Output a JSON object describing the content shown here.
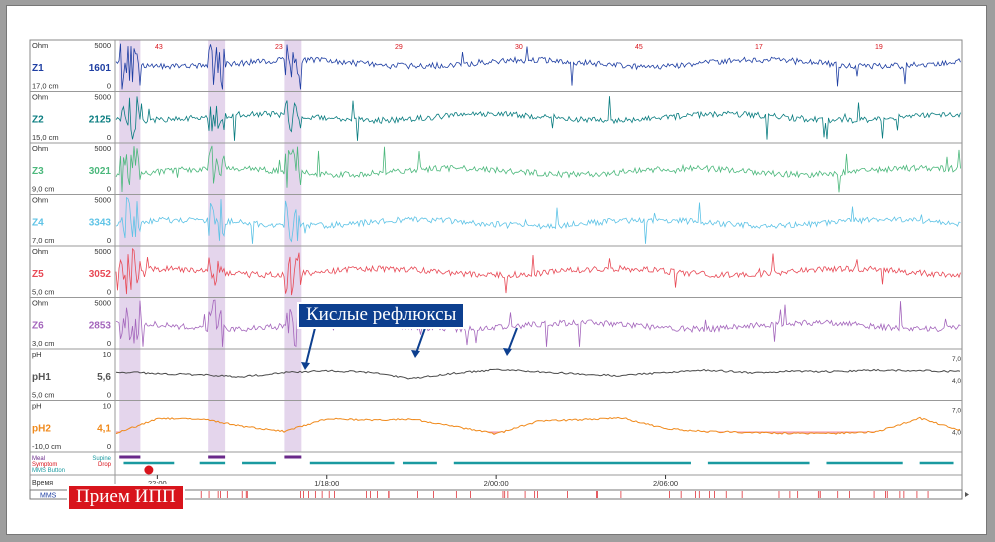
{
  "colors": {
    "Z1": "#1f3fa3",
    "Z2": "#0a7d80",
    "Z3": "#4cb87c",
    "Z4": "#5ec3e6",
    "Z5": "#e84a56",
    "Z6": "#a466bc",
    "pH1": "#4a4a4a",
    "pH2": "#f08a1c",
    "label_blue": "#1f3fa3",
    "label_teal": "#0a7d80",
    "label_green": "#4cb87c",
    "label_cyan": "#5ec3e6",
    "label_red": "#e84a56",
    "label_purple": "#a466bc",
    "reflux_band": "#cdb3dd",
    "acid_fill": "#f28f9f",
    "supine": "#1a9aa0",
    "meal": "#6a2a8a",
    "annotation_bg": "#0d3f8f",
    "annotation_red": "#d8141c"
  },
  "annotations": {
    "reflux_label": "Кислые рефлюксы",
    "ppi_label": "Прием ИПП"
  },
  "chart_data": {
    "type": "line",
    "channels": [
      {
        "name": "Z1",
        "unit": "Ohm",
        "scale_max": "5000",
        "scale_min": "0",
        "value": "1601",
        "depth": "17,0 cm"
      },
      {
        "name": "Z2",
        "unit": "Ohm",
        "scale_max": "5000",
        "scale_min": "0",
        "value": "2125",
        "depth": "15,0 cm"
      },
      {
        "name": "Z3",
        "unit": "Ohm",
        "scale_max": "5000",
        "scale_min": "0",
        "value": "3021",
        "depth": "9,0 cm"
      },
      {
        "name": "Z4",
        "unit": "Ohm",
        "scale_max": "5000",
        "scale_min": "0",
        "value": "3343",
        "depth": "7,0 cm"
      },
      {
        "name": "Z5",
        "unit": "Ohm",
        "scale_max": "5000",
        "scale_min": "0",
        "value": "3052",
        "depth": "5,0 cm"
      },
      {
        "name": "Z6",
        "unit": "Ohm",
        "scale_max": "5000",
        "scale_min": "0",
        "value": "2853",
        "depth": "3,0 cm"
      },
      {
        "name": "pH1",
        "unit": "pH",
        "scale_max": "10",
        "scale_min": "0",
        "value": "5,6",
        "depth": "5,0 cm",
        "ref_top": "7,0",
        "ref_bottom": "4,0"
      },
      {
        "name": "pH2",
        "unit": "pH",
        "scale_max": "10",
        "scale_min": "0",
        "value": "4,1",
        "depth": "-10,0 cm",
        "ref_top": "7,0",
        "ref_bottom": "4,0"
      }
    ],
    "events": {
      "meal_label": "Meal",
      "symptom_label": "Symptom",
      "mms_button_label": "MMS Button",
      "supine_label": "Supine",
      "drop_label": "Drop"
    },
    "time_axis": {
      "label": "Время",
      "range_hours": [
        21.5,
        31.5
      ],
      "ticks": [
        {
          "label": "22:00",
          "t": 22.0
        },
        {
          "label": "1/18:00",
          "t": 24.0
        },
        {
          "label": "2/00:00",
          "t": 26.0
        },
        {
          "label": "2/06:00",
          "t": 28.0
        }
      ]
    },
    "marker_numbers": [
      "43",
      "23",
      "29",
      "30",
      "45",
      "17",
      "19"
    ],
    "reflux_episodes_hours": [
      [
        21.55,
        21.8
      ],
      [
        22.6,
        22.8
      ],
      [
        23.5,
        23.7
      ]
    ],
    "z_baseline_levels": [
      0.55,
      0.5,
      0.45,
      0.45,
      0.5,
      0.45
    ],
    "ph1_values": [
      5.6,
      5.2,
      5.0,
      4.6,
      5.4,
      5.8,
      5.5,
      4.2,
      5.3,
      6.0,
      5.6,
      5.1,
      4.8,
      5.5,
      5.9,
      5.4,
      5.7,
      5.6,
      5.9,
      5.8,
      5.6
    ],
    "ph2_values": [
      3.5,
      6.5,
      6.5,
      5.0,
      4.0,
      6.5,
      6.2,
      6.4,
      5.0,
      3.5,
      6.0,
      6.3,
      6.6,
      4.5,
      4.0,
      3.8,
      3.6,
      3.6,
      3.9,
      6.6,
      4.1
    ],
    "mms_label": "MMS"
  }
}
